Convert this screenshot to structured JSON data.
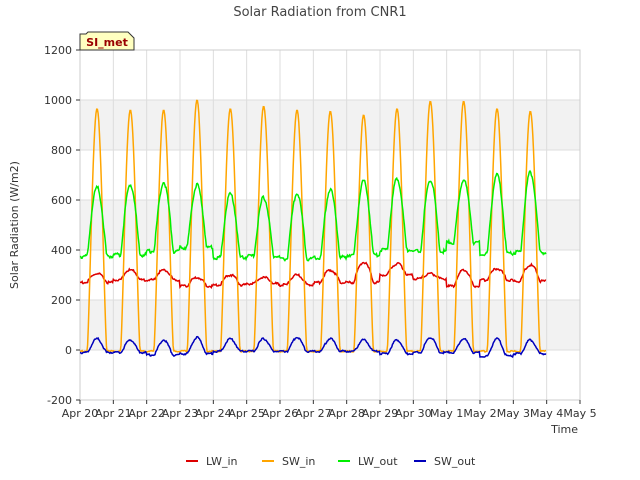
{
  "chart_data": {
    "type": "line",
    "title": "Solar Radiation from CNR1",
    "xlabel": "Time",
    "ylabel": "Solar Radiation (W/m2)",
    "ylim": [
      -200,
      1200
    ],
    "xlim": [
      0,
      15
    ],
    "yticks": [
      -200,
      0,
      200,
      400,
      600,
      800,
      1000,
      1200
    ],
    "xticks": [
      0,
      1,
      2,
      3,
      4,
      5,
      6,
      7,
      8,
      9,
      10,
      11,
      12,
      13,
      14,
      15
    ],
    "xtick_labels": [
      "Apr 20",
      "Apr 21",
      "Apr 22",
      "Apr 23",
      "Apr 24",
      "Apr 25",
      "Apr 26",
      "Apr 27",
      "Apr 28",
      "Apr 29",
      "Apr 30",
      "May 1",
      "May 2",
      "May 3",
      "May 4",
      "May 5"
    ],
    "station_label": "SI_met",
    "legend_position": "bottom-center",
    "grid": true,
    "day_peaks": {
      "days": [
        0,
        1,
        2,
        3,
        4,
        5,
        6,
        7,
        8,
        9,
        10,
        11,
        12,
        13
      ],
      "SW_in_peak": [
        965,
        960,
        960,
        1000,
        965,
        975,
        960,
        955,
        940,
        965,
        995,
        995,
        965,
        955
      ],
      "LW_out_peak": [
        650,
        660,
        670,
        660,
        625,
        610,
        625,
        640,
        675,
        685,
        680,
        680,
        700,
        710
      ],
      "LW_out_night": [
        375,
        380,
        395,
        410,
        370,
        375,
        365,
        370,
        380,
        400,
        395,
        430,
        385,
        390
      ],
      "LW_in_peak": [
        305,
        320,
        320,
        290,
        300,
        290,
        300,
        320,
        350,
        345,
        305,
        320,
        325,
        340
      ],
      "LW_in_night": [
        270,
        280,
        280,
        255,
        260,
        265,
        260,
        270,
        270,
        300,
        285,
        255,
        280,
        275
      ],
      "SW_out_peak": [
        45,
        40,
        40,
        50,
        45,
        45,
        50,
        45,
        40,
        40,
        50,
        45,
        45,
        40
      ],
      "SW_out_night": [
        -10,
        -10,
        -20,
        -15,
        -5,
        -5,
        -5,
        -5,
        -5,
        -15,
        -10,
        -10,
        -25,
        -15
      ]
    },
    "series": [
      {
        "name": "LW_in",
        "color": "#dd0000"
      },
      {
        "name": "SW_in",
        "color": "#ffa500"
      },
      {
        "name": "LW_out",
        "color": "#00ee00"
      },
      {
        "name": "SW_out",
        "color": "#0000bb"
      }
    ]
  }
}
